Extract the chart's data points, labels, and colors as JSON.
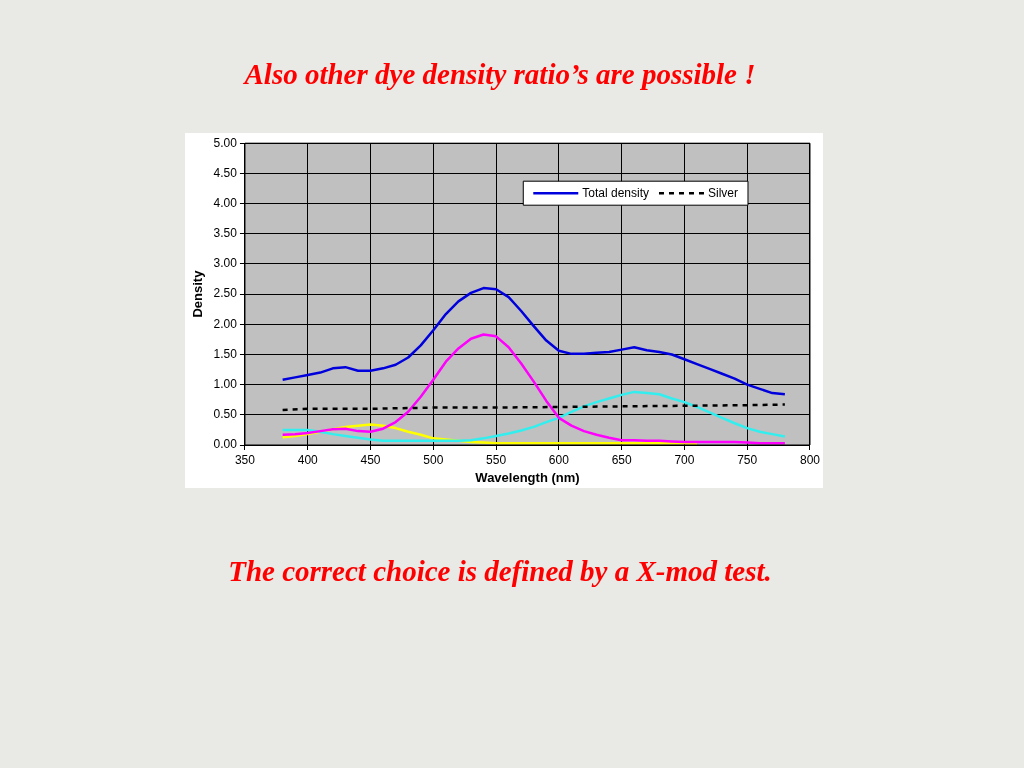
{
  "chart_data": {
    "type": "line",
    "title": "Also other dye density ratio’s are possible !",
    "xlabel": "Wavelength (nm)",
    "ylabel": "Density",
    "annotations": [
      "The correct choice is defined by a X-mod test."
    ],
    "x": [
      380,
      390,
      400,
      410,
      420,
      430,
      440,
      450,
      460,
      470,
      480,
      490,
      500,
      510,
      520,
      530,
      540,
      550,
      560,
      570,
      580,
      590,
      600,
      610,
      620,
      630,
      640,
      650,
      660,
      670,
      680,
      690,
      700,
      710,
      720,
      730,
      740,
      750,
      760,
      770,
      780
    ],
    "xlim": [
      350,
      800
    ],
    "xticks": [
      350,
      400,
      450,
      500,
      550,
      600,
      650,
      700,
      750,
      800
    ],
    "ylim": [
      0,
      5
    ],
    "yticks": [
      {
        "value": 0,
        "label": "0.00"
      },
      {
        "value": 0.5,
        "label": "0.50"
      },
      {
        "value": 1,
        "label": "1.00"
      },
      {
        "value": 1.5,
        "label": "1.50"
      },
      {
        "value": 2,
        "label": "2.00"
      },
      {
        "value": 2.5,
        "label": "2.50"
      },
      {
        "value": 3,
        "label": "3.00"
      },
      {
        "value": 3.5,
        "label": "3.50"
      },
      {
        "value": 4,
        "label": "4.00"
      },
      {
        "value": 4.5,
        "label": "4.50"
      },
      {
        "value": 5,
        "label": "5.00"
      }
    ],
    "grid": true,
    "legend": "top right",
    "marker": "none",
    "series": [
      {
        "name": "Total density",
        "color": "#0000dd",
        "line_style": "solid",
        "values": [
          1.08,
          1.12,
          1.16,
          1.2,
          1.27,
          1.29,
          1.23,
          1.23,
          1.27,
          1.33,
          1.45,
          1.65,
          1.9,
          2.17,
          2.38,
          2.52,
          2.6,
          2.58,
          2.45,
          2.22,
          1.97,
          1.73,
          1.56,
          1.51,
          1.51,
          1.53,
          1.54,
          1.58,
          1.62,
          1.57,
          1.54,
          1.5,
          1.42,
          1.34,
          1.26,
          1.18,
          1.1,
          1.0,
          0.93,
          0.86,
          0.84
        ]
      },
      {
        "name": "Silver",
        "color": "#000000",
        "line_style": "dashed",
        "x": [
          380,
          400,
          450,
          500,
          550,
          600,
          650,
          700,
          750,
          780
        ],
        "values": [
          0.58,
          0.6,
          0.6,
          0.62,
          0.62,
          0.63,
          0.64,
          0.65,
          0.66,
          0.67
        ]
      },
      {
        "color": "#ff00ff",
        "line_style": "solid",
        "values": [
          0.17,
          0.18,
          0.2,
          0.23,
          0.26,
          0.27,
          0.23,
          0.22,
          0.27,
          0.38,
          0.55,
          0.8,
          1.08,
          1.38,
          1.6,
          1.76,
          1.83,
          1.8,
          1.62,
          1.35,
          1.05,
          0.73,
          0.45,
          0.32,
          0.23,
          0.17,
          0.12,
          0.08,
          0.08,
          0.07,
          0.07,
          0.06,
          0.05,
          0.05,
          0.05,
          0.05,
          0.05,
          0.04,
          0.03,
          0.03,
          0.03
        ]
      },
      {
        "color": "#33eeee",
        "line_style": "solid",
        "values": [
          0.25,
          0.25,
          0.25,
          0.22,
          0.18,
          0.15,
          0.12,
          0.09,
          0.07,
          0.07,
          0.07,
          0.07,
          0.07,
          0.07,
          0.07,
          0.08,
          0.11,
          0.15,
          0.19,
          0.24,
          0.3,
          0.38,
          0.45,
          0.55,
          0.64,
          0.71,
          0.77,
          0.83,
          0.88,
          0.86,
          0.84,
          0.77,
          0.71,
          0.63,
          0.54,
          0.45,
          0.36,
          0.28,
          0.22,
          0.18,
          0.14
        ]
      },
      {
        "color": "#ffff00",
        "line_style": "solid",
        "values": [
          0.13,
          0.15,
          0.18,
          0.22,
          0.26,
          0.3,
          0.32,
          0.34,
          0.32,
          0.28,
          0.22,
          0.17,
          0.11,
          0.09,
          0.07,
          0.05,
          0.04,
          0.03,
          0.03,
          0.03,
          0.03,
          0.03,
          0.03,
          0.03,
          0.03,
          0.03,
          0.03,
          0.03,
          0.03,
          0.03,
          0.03,
          0.03,
          0.03,
          0.02,
          null,
          null,
          null,
          null,
          null,
          null,
          null
        ]
      }
    ]
  }
}
